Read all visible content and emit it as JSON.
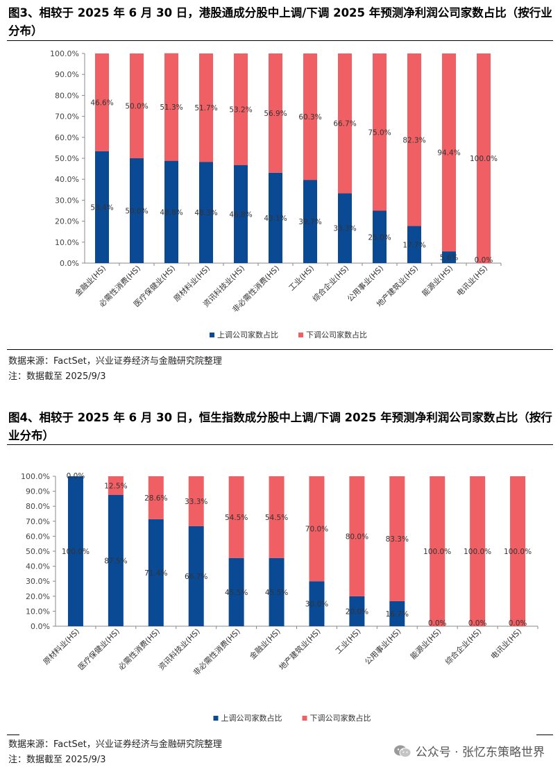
{
  "figures": [
    {
      "title": "图3、相较于 2025 年 6 月 30 日，港股通成分股中上调/下调 2025 年预测净利润公司家数占比（按行业分布）",
      "source": "数据来源：FactSet，兴业证券经济与金融研究院整理",
      "note": "注：数据截至 2025/9/3"
    },
    {
      "title": "图4、相较于 2025 年 6 月 30 日，恒生指数成分股中上调/下调 2025 年预测净利润公司家数占比（按行业分布）",
      "source": "数据来源：FactSet，兴业证券经济与金融研究院整理",
      "note": "注：数据截至 2025/9/3"
    }
  ],
  "watermark": "公众号 · 张忆东策略世界",
  "colors": {
    "up": "#0a4a94",
    "down": "#ef5f64"
  },
  "chart_data": [
    {
      "type": "bar",
      "stacked": true,
      "title": "",
      "ylim": [
        0,
        100
      ],
      "yticks": [
        "0.0%",
        "10.0%",
        "20.0%",
        "30.0%",
        "40.0%",
        "50.0%",
        "60.0%",
        "70.0%",
        "80.0%",
        "90.0%",
        "100.0%"
      ],
      "categories": [
        "金融业(HS)",
        "必需性消费(HS)",
        "医疗保健业(HS)",
        "原材料业(HS)",
        "资讯科技业(HS)",
        "非必需性消费(HS)",
        "工业(HS)",
        "综合企业(HS)",
        "公用事业(HS)",
        "地产建筑业(HS)",
        "能源业(HS)",
        "电讯业(HS)"
      ],
      "series": [
        {
          "name": "上调公司家数占比",
          "values": [
            53.4,
            50.0,
            48.8,
            48.3,
            46.8,
            43.1,
            39.7,
            33.3,
            25.0,
            17.7,
            5.6,
            0.0
          ],
          "labels": [
            "53.4%",
            "50.0%",
            "48.8%",
            "48.3%",
            "46.8%",
            "43.1%",
            "39.7%",
            "33.3%",
            "25.0%",
            "17.7%",
            "5.6%",
            "0.0%"
          ]
        },
        {
          "name": "下调公司家数占比",
          "values": [
            46.6,
            50.0,
            51.3,
            51.7,
            53.2,
            56.9,
            60.3,
            66.7,
            75.0,
            82.3,
            94.4,
            100.0
          ],
          "labels": [
            "46.6%",
            "50.0%",
            "51.3%",
            "51.7%",
            "53.2%",
            "56.9%",
            "60.3%",
            "66.7%",
            "75.0%",
            "82.3%",
            "94.4%",
            "100.0%"
          ]
        }
      ],
      "legend": "bottom-center",
      "grid": false
    },
    {
      "type": "bar",
      "stacked": true,
      "title": "",
      "ylim": [
        0,
        100
      ],
      "yticks": [
        "0.0%",
        "10.0%",
        "20.0%",
        "30.0%",
        "40.0%",
        "50.0%",
        "60.0%",
        "70.0%",
        "80.0%",
        "90.0%",
        "100.0%"
      ],
      "categories": [
        "原材料业(HS)",
        "医疗保健业(HS)",
        "必需性消费(HS)",
        "资讯科技业(HS)",
        "非必需性消费(HS)",
        "金融业(HS)",
        "地产建筑业(HS)",
        "工业(HS)",
        "公用事业(HS)",
        "能源业(HS)",
        "综合企业(HS)",
        "电讯业(HS)"
      ],
      "series": [
        {
          "name": "上调公司家数占比",
          "values": [
            100.0,
            87.5,
            71.4,
            66.7,
            45.5,
            45.5,
            30.0,
            20.0,
            16.7,
            0.0,
            0.0,
            0.0
          ],
          "labels": [
            "100.0%",
            "87.5%",
            "71.4%",
            "66.7%",
            "45.5%",
            "45.5%",
            "30.0%",
            "20.0%",
            "16.7%",
            "0.0%",
            "0.0%",
            "0.0%"
          ]
        },
        {
          "name": "下调公司家数占比",
          "values": [
            0.0,
            12.5,
            28.6,
            33.3,
            54.5,
            54.5,
            70.0,
            80.0,
            83.3,
            100.0,
            100.0,
            100.0
          ],
          "labels": [
            "0.0%",
            "12.5%",
            "28.6%",
            "33.3%",
            "54.5%",
            "54.5%",
            "70.0%",
            "80.0%",
            "83.3%",
            "100.0%",
            "100.0%",
            "100.0%"
          ]
        }
      ],
      "legend": "bottom-center",
      "grid": false
    }
  ]
}
